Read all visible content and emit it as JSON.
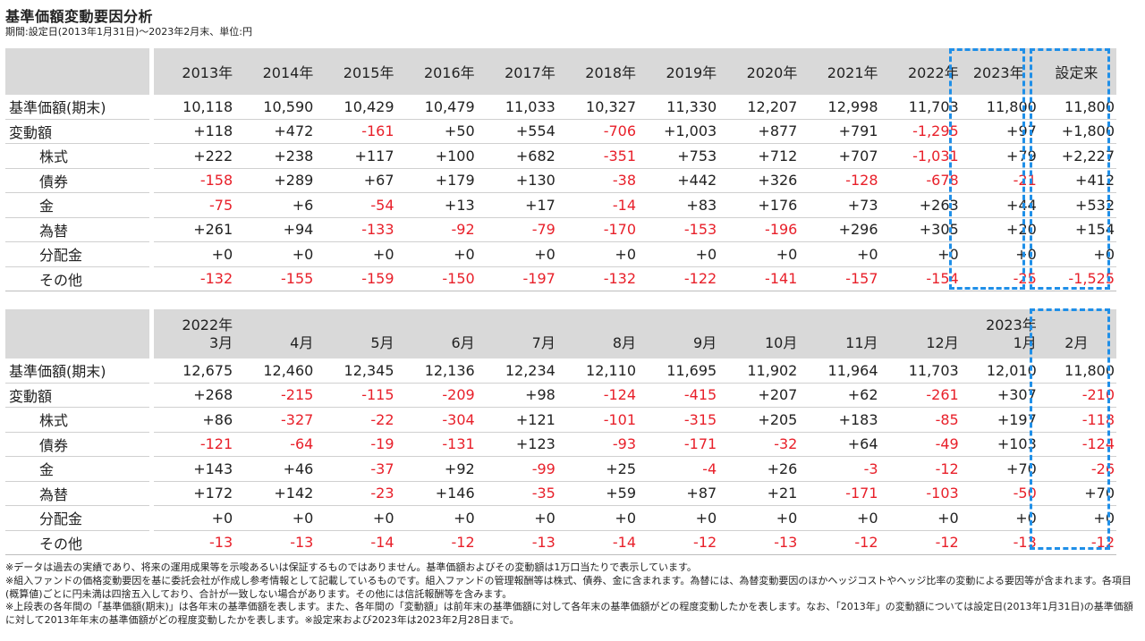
{
  "title": "基準価額変動要因分析",
  "subtitle": "期間:設定日(2013年1月31日)～2023年2月末、単位:円",
  "annual": {
    "columns": [
      "2013年",
      "2014年",
      "2015年",
      "2016年",
      "2017年",
      "2018年",
      "2019年",
      "2020年",
      "2021年",
      "2022年",
      "2023年",
      "設定来"
    ],
    "rows": [
      {
        "label": "基準価額(期末)",
        "sub": false,
        "values": [
          "10,118",
          "10,590",
          "10,429",
          "10,479",
          "11,033",
          "10,327",
          "11,330",
          "12,207",
          "12,998",
          "11,703",
          "11,800",
          "11,800"
        ]
      },
      {
        "label": "変動額",
        "sub": false,
        "values": [
          "+118",
          "+472",
          "-161",
          "+50",
          "+554",
          "-706",
          "+1,003",
          "+877",
          "+791",
          "-1,295",
          "+97",
          "+1,800"
        ]
      },
      {
        "label": "株式",
        "sub": true,
        "values": [
          "+222",
          "+238",
          "+117",
          "+100",
          "+682",
          "-351",
          "+753",
          "+712",
          "+707",
          "-1,031",
          "+79",
          "+2,227"
        ]
      },
      {
        "label": "債券",
        "sub": true,
        "values": [
          "-158",
          "+289",
          "+67",
          "+179",
          "+130",
          "-38",
          "+442",
          "+326",
          "-128",
          "-678",
          "-21",
          "+412"
        ]
      },
      {
        "label": "金",
        "sub": true,
        "values": [
          "-75",
          "+6",
          "-54",
          "+13",
          "+17",
          "-14",
          "+83",
          "+176",
          "+73",
          "+263",
          "+44",
          "+532"
        ]
      },
      {
        "label": "為替",
        "sub": true,
        "values": [
          "+261",
          "+94",
          "-133",
          "-92",
          "-79",
          "-170",
          "-153",
          "-196",
          "+296",
          "+305",
          "+20",
          "+154"
        ]
      },
      {
        "label": "分配金",
        "sub": true,
        "values": [
          "+0",
          "+0",
          "+0",
          "+0",
          "+0",
          "+0",
          "+0",
          "+0",
          "+0",
          "+0",
          "+0",
          "+0"
        ]
      },
      {
        "label": "その他",
        "sub": true,
        "values": [
          "-132",
          "-155",
          "-159",
          "-150",
          "-197",
          "-132",
          "-122",
          "-141",
          "-157",
          "-154",
          "-25",
          "-1,525"
        ]
      }
    ]
  },
  "monthly": {
    "year_labels": [
      "2022年",
      "",
      "",
      "",
      "",
      "",
      "",
      "",
      "",
      "",
      "2023年",
      ""
    ],
    "columns": [
      "3月",
      "4月",
      "5月",
      "6月",
      "7月",
      "8月",
      "9月",
      "10月",
      "11月",
      "12月",
      "1月",
      "2月"
    ],
    "rows": [
      {
        "label": "基準価額(期末)",
        "sub": false,
        "values": [
          "12,675",
          "12,460",
          "12,345",
          "12,136",
          "12,234",
          "12,110",
          "11,695",
          "11,902",
          "11,964",
          "11,703",
          "12,010",
          "11,800"
        ]
      },
      {
        "label": "変動額",
        "sub": false,
        "values": [
          "+268",
          "-215",
          "-115",
          "-209",
          "+98",
          "-124",
          "-415",
          "+207",
          "+62",
          "-261",
          "+307",
          "-210"
        ]
      },
      {
        "label": "株式",
        "sub": true,
        "values": [
          "+86",
          "-327",
          "-22",
          "-304",
          "+121",
          "-101",
          "-315",
          "+205",
          "+183",
          "-85",
          "+197",
          "-118"
        ]
      },
      {
        "label": "債券",
        "sub": true,
        "values": [
          "-121",
          "-64",
          "-19",
          "-131",
          "+123",
          "-93",
          "-171",
          "-32",
          "+64",
          "-49",
          "+103",
          "-124"
        ]
      },
      {
        "label": "金",
        "sub": true,
        "values": [
          "+143",
          "+46",
          "-37",
          "+92",
          "-99",
          "+25",
          "-4",
          "+26",
          "-3",
          "-12",
          "+70",
          "-26"
        ]
      },
      {
        "label": "為替",
        "sub": true,
        "values": [
          "+172",
          "+142",
          "-23",
          "+146",
          "-35",
          "+59",
          "+87",
          "+21",
          "-171",
          "-103",
          "-50",
          "+70"
        ]
      },
      {
        "label": "分配金",
        "sub": true,
        "values": [
          "+0",
          "+0",
          "+0",
          "+0",
          "+0",
          "+0",
          "+0",
          "+0",
          "+0",
          "+0",
          "+0",
          "+0"
        ]
      },
      {
        "label": "その他",
        "sub": true,
        "values": [
          "-13",
          "-13",
          "-14",
          "-12",
          "-13",
          "-14",
          "-12",
          "-13",
          "-12",
          "-12",
          "-13",
          "-12"
        ]
      }
    ]
  },
  "colors": {
    "negative": "#e8202a",
    "header_bg": "#d9d9d9",
    "highlight": "#1f8fe8"
  },
  "notes": [
    "※データは過去の実績であり、将来の運用成果等を示唆あるいは保証するものではありません。基準価額およびその変動額は1万口当たりで表示しています。",
    "※組入ファンドの価格変動要因を基に委託会社が作成し参考情報として記載しているものです。組入ファンドの管理報酬等は株式、債券、金に含まれます。為替には、為替変動要因のほかヘッジコストやヘッジ比率の変動による要因等が含まれます。各項目(概算値)ごとに円未満は四捨五入しており、合計が一致しない場合があります。その他には信託報酬等を含みます。",
    "※上段表の各年間の「基準価額(期末)」は各年末の基準価額を表します。また、各年間の「変動額」は前年末の基準価額に対して各年末の基準価額がどの程度変動したかを表します。なお、「2013年」の変動額については設定日(2013年1月31日)の基準価額に対して2013年年末の基準価額がどの程度変動したかを表します。※設定来および2023年は2023年2月28日まで。"
  ]
}
